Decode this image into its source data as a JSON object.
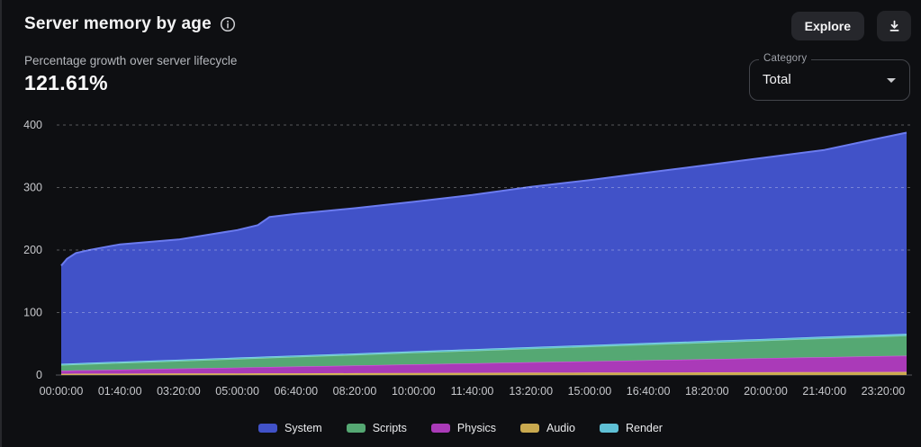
{
  "header": {
    "title": "Server memory by age",
    "explore_button": "Explore",
    "icons": {
      "info": "info-icon",
      "download": "download-icon",
      "caret": "caret-down-icon"
    }
  },
  "summary": {
    "label": "Percentage growth over server lifecycle",
    "value": "121.61%"
  },
  "category_select": {
    "label": "Category",
    "value": "Total"
  },
  "colors": {
    "background": "#0e0f12",
    "button": "#26272c",
    "grid_dashed": "rgba(255,255,255,0.30)",
    "axis_line": "#54555b",
    "tick_text": "#c7c8cc"
  },
  "chart_data": {
    "type": "area",
    "stacked": true,
    "title": "Server memory by age",
    "xlabel": "",
    "ylabel": "",
    "y_max": 400,
    "y_ticks": [
      0,
      100,
      200,
      300,
      400
    ],
    "t_max": 86400,
    "x_seconds": [
      0,
      600,
      1500,
      3000,
      6000,
      12000,
      18000,
      20100,
      21300,
      24000,
      30000,
      36000,
      42000,
      48000,
      54000,
      60000,
      66000,
      72000,
      78000,
      84000,
      86400
    ],
    "x_tick_seconds": [
      0,
      6000,
      12000,
      18000,
      24000,
      30000,
      36000,
      42000,
      48000,
      54000,
      60000,
      66000,
      72000,
      78000,
      84000
    ],
    "x_tick_labels": [
      "00:00:00",
      "01:40:00",
      "03:20:00",
      "05:00:00",
      "06:40:00",
      "08:20:00",
      "10:00:00",
      "11:40:00",
      "13:20:00",
      "15:00:00",
      "16:40:00",
      "18:20:00",
      "20:00:00",
      "21:40:00",
      "23:20:00"
    ],
    "legend_position": "bottom",
    "grid": true,
    "series": [
      {
        "name": "System",
        "key": "system",
        "color": "#4152c8",
        "stroke": "#6b7bef",
        "values": [
          157,
          167.7,
          176.2,
          180.8,
          187.7,
          192.3,
          204,
          210.8,
          223.2,
          226.7,
          232.3,
          239,
          246.7,
          256.3,
          264,
          272.7,
          281.3,
          290,
          298.7,
          315.3,
          321.8
        ]
      },
      {
        "name": "Scripts",
        "key": "scripts",
        "color": "#55a873",
        "stroke": "#8fd6ac",
        "values": [
          9,
          9.2,
          9.4,
          9.8,
          10.6,
          12.2,
          13.8,
          14.3,
          14.7,
          15.4,
          17,
          18.6,
          20.2,
          21.8,
          23.4,
          25,
          26.6,
          28.2,
          29.8,
          31.4,
          32
        ]
      },
      {
        "name": "Physics",
        "key": "physics",
        "color": "#aa3ab8",
        "stroke": "#d958e2",
        "values": [
          5,
          5.1,
          5.4,
          5.7,
          6.5,
          7.9,
          9.4,
          9.9,
          10.2,
          10.8,
          12.3,
          13.8,
          15.2,
          16.7,
          18.1,
          19.6,
          21,
          22.5,
          24,
          25.4,
          26
        ]
      },
      {
        "name": "Audio",
        "key": "audio",
        "color": "#c9a94f",
        "stroke": "#e6cb70",
        "values": [
          2,
          2,
          2.1,
          2.1,
          2.2,
          2.4,
          2.6,
          2.7,
          2.7,
          2.8,
          3,
          3.3,
          3.5,
          3.7,
          3.9,
          4.1,
          4.3,
          4.5,
          4.7,
          4.9,
          5
        ]
      },
      {
        "name": "Render",
        "key": "render",
        "color": "#5fc0d5",
        "stroke": "#93e0f0",
        "values": [
          2,
          2,
          2,
          2.1,
          2.1,
          2.1,
          2.2,
          2.2,
          2.2,
          2.3,
          2.3,
          2.4,
          2.5,
          2.6,
          2.6,
          2.7,
          2.8,
          2.8,
          2.9,
          3,
          3
        ]
      }
    ],
    "stack_bottom_to_top": [
      "audio",
      "physics",
      "scripts",
      "render",
      "system"
    ],
    "totals_start_end": {
      "start": 175,
      "end": 387.8
    }
  }
}
